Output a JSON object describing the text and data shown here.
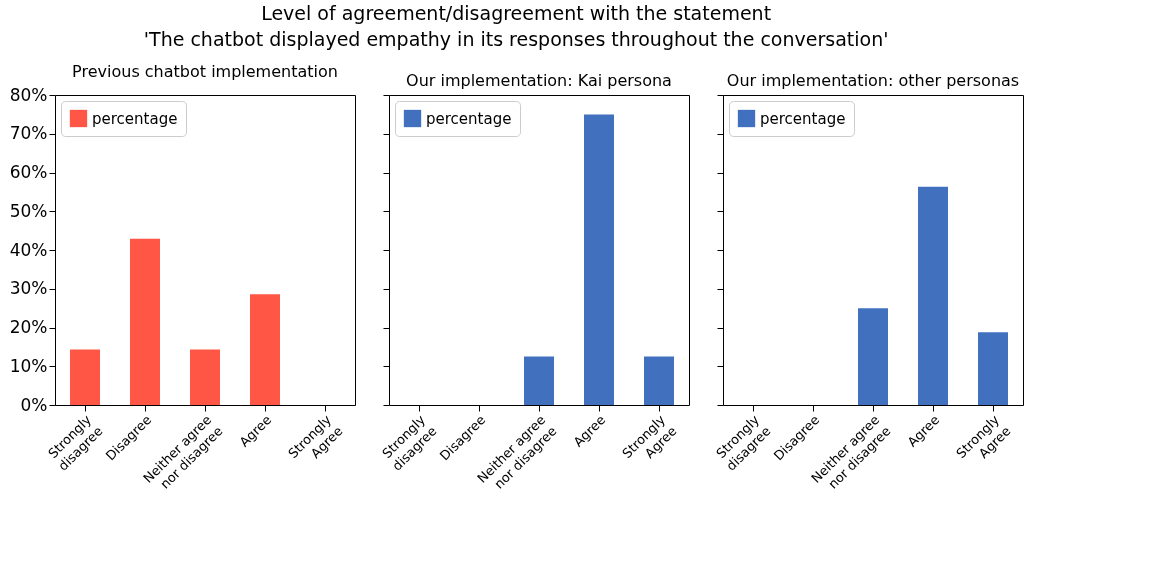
{
  "chart_data": [
    {
      "type": "bar",
      "title": "Previous chatbot implementation",
      "annotations": [
        "Level of agreement/disagreement with the statement",
        "'The chatbot displayed empathy in its responses throughout the conversation'"
      ],
      "categories": [
        "Strongly\ndisagree",
        "Disagree",
        "Neither agree\nnor disagree",
        "Agree",
        "Strongly\nAgree"
      ],
      "series": [
        {
          "name": "percentage",
          "color": "#ff5645",
          "values": [
            14.3,
            42.9,
            14.3,
            28.6,
            0
          ]
        }
      ],
      "ylim": [
        0,
        80
      ],
      "yticks": [
        {
          "value": 0,
          "label": "0%"
        },
        {
          "value": 10,
          "label": "10%"
        },
        {
          "value": 20,
          "label": "20%"
        },
        {
          "value": 30,
          "label": "30%"
        },
        {
          "value": 40,
          "label": "40%"
        },
        {
          "value": 50,
          "label": "50%"
        },
        {
          "value": 60,
          "label": "60%"
        },
        {
          "value": 70,
          "label": "70%"
        },
        {
          "value": 80,
          "label": "80%"
        }
      ],
      "grid": false,
      "legend": "top left"
    },
    {
      "type": "bar",
      "title": "Our implementation: Kai persona",
      "categories": [
        "Strongly\ndisagree",
        "Disagree",
        "Neither agree\nnor disagree",
        "Agree",
        "Strongly\nAgree"
      ],
      "series": [
        {
          "name": "percentage",
          "color": "#4170bf",
          "values": [
            0,
            0,
            12.5,
            75,
            12.5
          ]
        }
      ],
      "ylim": [
        0,
        80
      ],
      "yticks": [
        {
          "value": 0,
          "label": null
        },
        {
          "value": 10,
          "label": null
        },
        {
          "value": 20,
          "label": null
        },
        {
          "value": 30,
          "label": null
        },
        {
          "value": 40,
          "label": null
        },
        {
          "value": 50,
          "label": null
        },
        {
          "value": 60,
          "label": null
        },
        {
          "value": 70,
          "label": null
        },
        {
          "value": 80,
          "label": null
        }
      ],
      "grid": false,
      "legend": "top left",
      "tick_labels": "x"
    },
    {
      "type": "bar",
      "title": "Our implementation: other personas",
      "categories": [
        "Strongly\ndisagree",
        "Disagree",
        "Neither agree\nnor disagree",
        "Agree",
        "Strongly\nAgree"
      ],
      "series": [
        {
          "name": "percentage",
          "color": "#4170bf",
          "values": [
            0,
            0,
            25,
            56.3,
            18.8
          ]
        }
      ],
      "ylim": [
        0,
        80
      ],
      "yticks": [
        {
          "value": 0,
          "label": null
        },
        {
          "value": 10,
          "label": null
        },
        {
          "value": 20,
          "label": null
        },
        {
          "value": 30,
          "label": null
        },
        {
          "value": 40,
          "label": null
        },
        {
          "value": 50,
          "label": null
        },
        {
          "value": 60,
          "label": null
        },
        {
          "value": 70,
          "label": null
        },
        {
          "value": 80,
          "label": null
        }
      ],
      "grid": false,
      "legend": "top left",
      "tick_labels": "x"
    }
  ]
}
